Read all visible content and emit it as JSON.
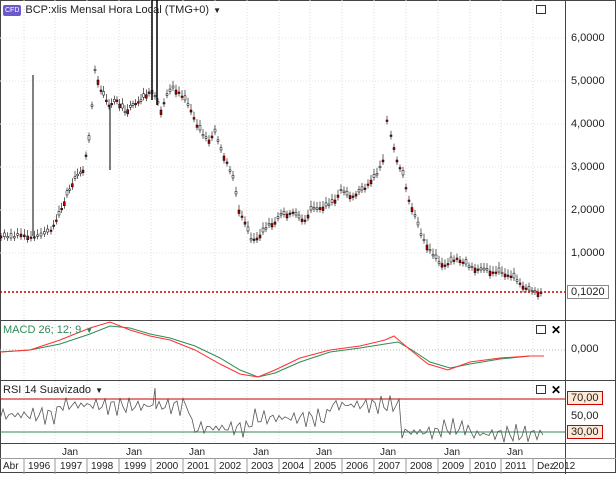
{
  "main": {
    "badge": "CFD",
    "title": "BCP:xlis Mensal Hora Local (TMG+0)",
    "y_labels": [
      "6,0000",
      "5,0000",
      "4,0000",
      "3,0000",
      "2,0000",
      "1,0000"
    ],
    "current_value": "0,1020",
    "colors": {
      "candle_up": "#000000",
      "candle_down": "#c00000",
      "current_line": "#c00000"
    }
  },
  "macd": {
    "title": "MACD 26; 12; 9",
    "zero_label": "0,000",
    "colors": {
      "macd": "#ff3030",
      "signal": "#2e8b57"
    }
  },
  "rsi": {
    "title": "RSI 14 Suavizado",
    "upper_label": "70,00",
    "mid_label": "50,00",
    "lower_label": "30,00",
    "colors": {
      "upper": "#c00000",
      "lower": "#2e8b57",
      "line": "#444444"
    }
  },
  "xaxis": {
    "jan_label": "Jan",
    "years": [
      "Abr",
      "1996",
      "1997",
      "1998",
      "1999",
      "2000",
      "2001",
      "2002",
      "2003",
      "2004",
      "2005",
      "2006",
      "2007",
      "2008",
      "2009",
      "2010",
      "2011",
      "Dez",
      "2012"
    ]
  }
}
